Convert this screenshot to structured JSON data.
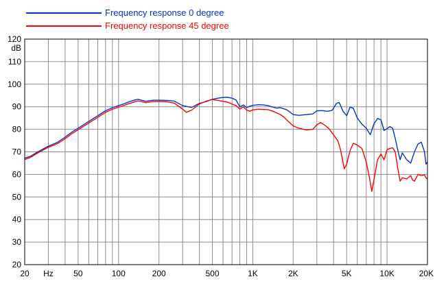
{
  "chart_data": {
    "type": "line",
    "x_scale": "log",
    "xlim": [
      20,
      20000
    ],
    "ylim": [
      20,
      120
    ],
    "y_unit": "dB",
    "x_unit": "Hz",
    "x_tick_labels": [
      {
        "value": 20,
        "label": "20"
      },
      {
        "value": 50,
        "label": "50"
      },
      {
        "value": 100,
        "label": "100"
      },
      {
        "value": 200,
        "label": "200"
      },
      {
        "value": 500,
        "label": "500"
      },
      {
        "value": 1000,
        "label": "1K"
      },
      {
        "value": 2000,
        "label": "2K"
      },
      {
        "value": 5000,
        "label": "5K"
      },
      {
        "value": 10000,
        "label": "10K"
      },
      {
        "value": 20000,
        "label": "20K"
      }
    ],
    "y_ticks": [
      20,
      30,
      40,
      50,
      60,
      70,
      80,
      90,
      100,
      110,
      120
    ],
    "grid": true,
    "legend_position": "top-left",
    "series": [
      {
        "name": "Frequency response 0 degree",
        "color": "#0033cc",
        "points": [
          [
            20,
            67.2
          ],
          [
            22,
            68
          ],
          [
            25,
            70
          ],
          [
            30,
            72.5
          ],
          [
            35,
            74.2
          ],
          [
            40,
            76.5
          ],
          [
            45,
            78.8
          ],
          [
            50,
            80.5
          ],
          [
            60,
            83.5
          ],
          [
            70,
            86
          ],
          [
            80,
            88.2
          ],
          [
            90,
            89.6
          ],
          [
            100,
            90.5
          ],
          [
            110,
            91.3
          ],
          [
            120,
            92.2
          ],
          [
            130,
            92.9
          ],
          [
            140,
            93.3
          ],
          [
            150,
            92.8
          ],
          [
            160,
            92.4
          ],
          [
            170,
            92.7
          ],
          [
            180,
            92.9
          ],
          [
            200,
            92.9
          ],
          [
            230,
            92.8
          ],
          [
            260,
            92.5
          ],
          [
            300,
            90.5
          ],
          [
            350,
            89.7
          ],
          [
            400,
            91.5
          ],
          [
            450,
            92.3
          ],
          [
            500,
            93.3
          ],
          [
            550,
            93.8
          ],
          [
            600,
            94.1
          ],
          [
            650,
            94.2
          ],
          [
            700,
            93.8
          ],
          [
            750,
            93
          ],
          [
            800,
            90
          ],
          [
            850,
            90.8
          ],
          [
            900,
            89.6
          ],
          [
            950,
            90.2
          ],
          [
            1000,
            90.6
          ],
          [
            1100,
            90.9
          ],
          [
            1200,
            90.8
          ],
          [
            1300,
            90.5
          ],
          [
            1400,
            89.9
          ],
          [
            1500,
            89.4
          ],
          [
            1600,
            89.6
          ],
          [
            1700,
            89.1
          ],
          [
            1800,
            88.6
          ],
          [
            2000,
            86.5
          ],
          [
            2200,
            86.2
          ],
          [
            2500,
            86.5
          ],
          [
            2800,
            86.8
          ],
          [
            3000,
            88.2
          ],
          [
            3300,
            88.3
          ],
          [
            3600,
            88
          ],
          [
            3900,
            88.4
          ],
          [
            4200,
            91.5
          ],
          [
            4400,
            91.9
          ],
          [
            4700,
            88
          ],
          [
            5000,
            86
          ],
          [
            5300,
            89.8
          ],
          [
            5600,
            89.4
          ],
          [
            6000,
            85
          ],
          [
            6500,
            82.3
          ],
          [
            7000,
            80.5
          ],
          [
            7500,
            77.6
          ],
          [
            8000,
            82.5
          ],
          [
            8500,
            84.8
          ],
          [
            9000,
            84.2
          ],
          [
            9500,
            79.5
          ],
          [
            10000,
            80.3
          ],
          [
            10500,
            81.2
          ],
          [
            11000,
            80.5
          ],
          [
            11500,
            76
          ],
          [
            12000,
            71
          ],
          [
            12500,
            66.5
          ],
          [
            13000,
            69.5
          ],
          [
            14000,
            66.5
          ],
          [
            15000,
            65
          ],
          [
            16000,
            70
          ],
          [
            17000,
            73.5
          ],
          [
            18000,
            74.3
          ],
          [
            19000,
            70
          ],
          [
            19500,
            64.5
          ],
          [
            20000,
            65.5
          ]
        ]
      },
      {
        "name": "Frequency response 45 degree",
        "color": "#ff0000",
        "points": [
          [
            20,
            66.6
          ],
          [
            22,
            67.5
          ],
          [
            25,
            69.5
          ],
          [
            30,
            72
          ],
          [
            35,
            73.6
          ],
          [
            40,
            75.8
          ],
          [
            45,
            78.1
          ],
          [
            50,
            79.8
          ],
          [
            60,
            82.8
          ],
          [
            70,
            85.3
          ],
          [
            80,
            87.5
          ],
          [
            90,
            88.9
          ],
          [
            100,
            89.8
          ],
          [
            110,
            90.6
          ],
          [
            120,
            91.4
          ],
          [
            130,
            92.1
          ],
          [
            140,
            92.6
          ],
          [
            150,
            92.2
          ],
          [
            160,
            91.8
          ],
          [
            170,
            92.1
          ],
          [
            180,
            92.3
          ],
          [
            200,
            92.3
          ],
          [
            230,
            92.2
          ],
          [
            260,
            91.6
          ],
          [
            300,
            89
          ],
          [
            320,
            87.5
          ],
          [
            350,
            88.5
          ],
          [
            400,
            91.2
          ],
          [
            450,
            92.5
          ],
          [
            500,
            93.2
          ],
          [
            550,
            92.8
          ],
          [
            600,
            92.4
          ],
          [
            650,
            92
          ],
          [
            700,
            91.2
          ],
          [
            750,
            90.5
          ],
          [
            800,
            89
          ],
          [
            850,
            90
          ],
          [
            900,
            88.5
          ],
          [
            950,
            88
          ],
          [
            1000,
            88.6
          ],
          [
            1100,
            88.9
          ],
          [
            1200,
            88.8
          ],
          [
            1300,
            88.7
          ],
          [
            1400,
            88.1
          ],
          [
            1500,
            87.3
          ],
          [
            1600,
            86.6
          ],
          [
            1700,
            85.5
          ],
          [
            1800,
            84
          ],
          [
            2000,
            81.5
          ],
          [
            2200,
            80.5
          ],
          [
            2500,
            79.7
          ],
          [
            2800,
            80
          ],
          [
            3000,
            82
          ],
          [
            3200,
            83
          ],
          [
            3500,
            81.5
          ],
          [
            3700,
            80.2
          ],
          [
            4000,
            77.5
          ],
          [
            4300,
            75
          ],
          [
            4500,
            71
          ],
          [
            4800,
            62.5
          ],
          [
            5000,
            64.5
          ],
          [
            5300,
            70.5
          ],
          [
            5600,
            73.8
          ],
          [
            6000,
            73
          ],
          [
            6500,
            71.5
          ],
          [
            7000,
            65.5
          ],
          [
            7400,
            58.5
          ],
          [
            7700,
            52.5
          ],
          [
            8000,
            58
          ],
          [
            8500,
            66.5
          ],
          [
            9000,
            69
          ],
          [
            9500,
            66.5
          ],
          [
            10000,
            71
          ],
          [
            10500,
            71.5
          ],
          [
            11000,
            71.8
          ],
          [
            11500,
            70
          ],
          [
            12000,
            63
          ],
          [
            12500,
            57
          ],
          [
            13000,
            58.5
          ],
          [
            14000,
            58
          ],
          [
            15000,
            59.5
          ],
          [
            15500,
            57.5
          ],
          [
            16000,
            57
          ],
          [
            17000,
            60
          ],
          [
            18000,
            59.5
          ],
          [
            19000,
            59.8
          ],
          [
            19500,
            58.5
          ],
          [
            20000,
            58
          ]
        ]
      }
    ]
  }
}
